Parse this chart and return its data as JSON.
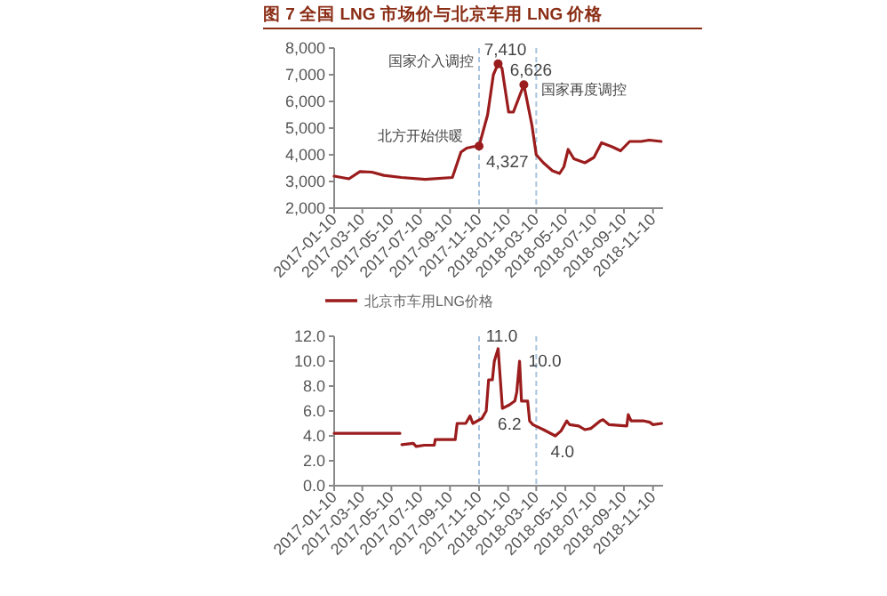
{
  "chart_data": [
    {
      "type": "line",
      "title": "图 7  全国 LNG 市场价与北京车用 LNG 价格",
      "xlim": [
        "2017-01-10",
        "2018-12-01"
      ],
      "xticks": [
        "2017-01-10",
        "2017-03-10",
        "2017-05-10",
        "2017-07-10",
        "2017-09-10",
        "2017-11-10",
        "2018-01-10",
        "2018-03-10",
        "2018-05-10",
        "2018-07-10",
        "2018-09-10",
        "2018-11-10"
      ],
      "ylim": [
        2000,
        8000
      ],
      "yticks": [
        {
          "value": 2000,
          "label": "2,000"
        },
        {
          "value": 3000,
          "label": "3,000"
        },
        {
          "value": 4000,
          "label": "4,000"
        },
        {
          "value": 5000,
          "label": "5,000"
        },
        {
          "value": 6000,
          "label": "6,000"
        },
        {
          "value": 7000,
          "label": "7,000"
        },
        {
          "value": 8000,
          "label": "8,000"
        }
      ],
      "ref_lines": [
        {
          "axis": "x",
          "value": "2017-11-10",
          "label": "国家介入调控",
          "color": "#a9c4dc",
          "line_style": "dashed"
        },
        {
          "axis": "x",
          "value": "2018-03-10",
          "label": "国家再度调控",
          "color": "#a9c4dc",
          "line_style": "dashed"
        }
      ],
      "annotations": [
        {
          "text": "北方开始供暖",
          "x": "2017-11-10",
          "y": 4327
        }
      ],
      "series": [
        {
          "color": "#9b1c1c",
          "x": [
            "2017-01-10",
            "2017-02-10",
            "2017-03-05",
            "2017-03-30",
            "2017-04-24",
            "2017-05-31",
            "2017-07-20",
            "2017-09-15",
            "2017-10-03",
            "2017-10-15",
            "2017-10-28",
            "2017-11-10",
            "2017-11-28",
            "2017-12-10",
            "2017-12-20",
            "2017-12-28",
            "2018-01-11",
            "2018-01-21",
            "2018-02-12",
            "2018-03-01",
            "2018-03-10",
            "2018-03-25",
            "2018-04-13",
            "2018-04-28",
            "2018-05-07",
            "2018-05-16",
            "2018-05-28",
            "2018-06-20",
            "2018-07-09",
            "2018-07-25",
            "2018-08-16",
            "2018-09-03",
            "2018-09-22",
            "2018-10-16",
            "2018-11-02",
            "2018-11-27"
          ],
          "values": [
            3200,
            3100,
            3370,
            3350,
            3230,
            3150,
            3080,
            3150,
            4100,
            4250,
            4300,
            4327,
            5500,
            7000,
            7410,
            7250,
            5600,
            5600,
            6626,
            5100,
            4000,
            3700,
            3400,
            3300,
            3550,
            4200,
            3850,
            3700,
            3900,
            4450,
            4300,
            4150,
            4500,
            4500,
            4550,
            4500
          ]
        },
        {
          "type": "scatter",
          "marker": "circle",
          "color": "#9b1c1c",
          "x": [
            "2017-11-10",
            "2017-12-20",
            "2018-02-12"
          ],
          "values": [
            4327,
            7410,
            6626
          ],
          "value_labels": [
            "4,327",
            "7,410",
            "6,626"
          ]
        }
      ]
    },
    {
      "type": "line",
      "legend": "top",
      "xlim": [
        "2017-01-10",
        "2018-12-01"
      ],
      "xticks": [
        "2017-01-10",
        "2017-03-10",
        "2017-05-10",
        "2017-07-10",
        "2017-09-10",
        "2017-11-10",
        "2018-01-10",
        "2018-03-10",
        "2018-05-10",
        "2018-07-10",
        "2018-09-10",
        "2018-11-10"
      ],
      "ylim": [
        0,
        12
      ],
      "yticks": [
        {
          "value": 0,
          "label": "0.0"
        },
        {
          "value": 2,
          "label": "2.0"
        },
        {
          "value": 4,
          "label": "4.0"
        },
        {
          "value": 6,
          "label": "6.0"
        },
        {
          "value": 8,
          "label": "8.0"
        },
        {
          "value": 10,
          "label": "10.0"
        },
        {
          "value": 12,
          "label": "12.0"
        }
      ],
      "ref_lines": [
        {
          "axis": "x",
          "value": "2017-11-10",
          "color": "#a9c4dc",
          "line_style": "dashed"
        },
        {
          "axis": "x",
          "value": "2018-03-10",
          "color": "#a9c4dc",
          "line_style": "dashed"
        }
      ],
      "annotations": [
        {
          "text": "11.0",
          "x": "2017-12-20",
          "y": 11.0
        },
        {
          "text": "10.0",
          "x": "2018-02-03",
          "y": 10.0
        },
        {
          "text": "6.2",
          "x": "2017-12-29",
          "y": 6.2
        },
        {
          "text": "4.0",
          "x": "2018-04-19",
          "y": 4.0
        }
      ],
      "series": [
        {
          "name": "北京市车用LNG价格",
          "color": "#9b1c1c",
          "x": [
            "2017-01-10",
            "2017-05-28",
            "2017-05-30",
            "2017-06-01",
            "2017-06-25",
            "2017-07-01",
            "2017-07-18",
            "2017-08-08",
            "2017-08-10",
            "2017-09-21",
            "2017-09-25",
            "2017-10-13",
            "2017-10-22",
            "2017-10-28",
            "2017-11-16",
            "2017-11-25",
            "2017-11-30",
            "2017-12-08",
            "2017-12-12",
            "2017-12-20",
            "2017-12-29",
            "2018-01-13",
            "2018-01-24",
            "2018-01-28",
            "2018-02-03",
            "2018-02-07",
            "2018-02-20",
            "2018-02-24",
            "2018-03-03",
            "2018-03-25",
            "2018-04-19",
            "2018-05-01",
            "2018-05-13",
            "2018-05-19",
            "2018-06-07",
            "2018-06-20",
            "2018-07-03",
            "2018-07-22",
            "2018-07-28",
            "2018-08-10",
            "2018-09-16",
            "2018-09-19",
            "2018-09-25",
            "2018-10-22",
            "2018-11-03",
            "2018-11-10",
            "2018-11-28"
          ],
          "values": [
            4.2,
            4.2,
            null,
            3.3,
            3.4,
            3.15,
            3.25,
            3.25,
            3.7,
            3.7,
            5.0,
            5.0,
            5.6,
            5.0,
            5.4,
            6.0,
            8.5,
            8.5,
            10.0,
            11.0,
            6.2,
            6.5,
            6.8,
            7.5,
            10.0,
            6.8,
            6.8,
            5.2,
            4.9,
            4.5,
            4.0,
            4.4,
            5.2,
            4.9,
            4.8,
            4.5,
            4.6,
            5.2,
            5.3,
            4.9,
            4.8,
            5.7,
            5.2,
            5.2,
            5.1,
            4.9,
            5.0
          ]
        }
      ]
    }
  ]
}
